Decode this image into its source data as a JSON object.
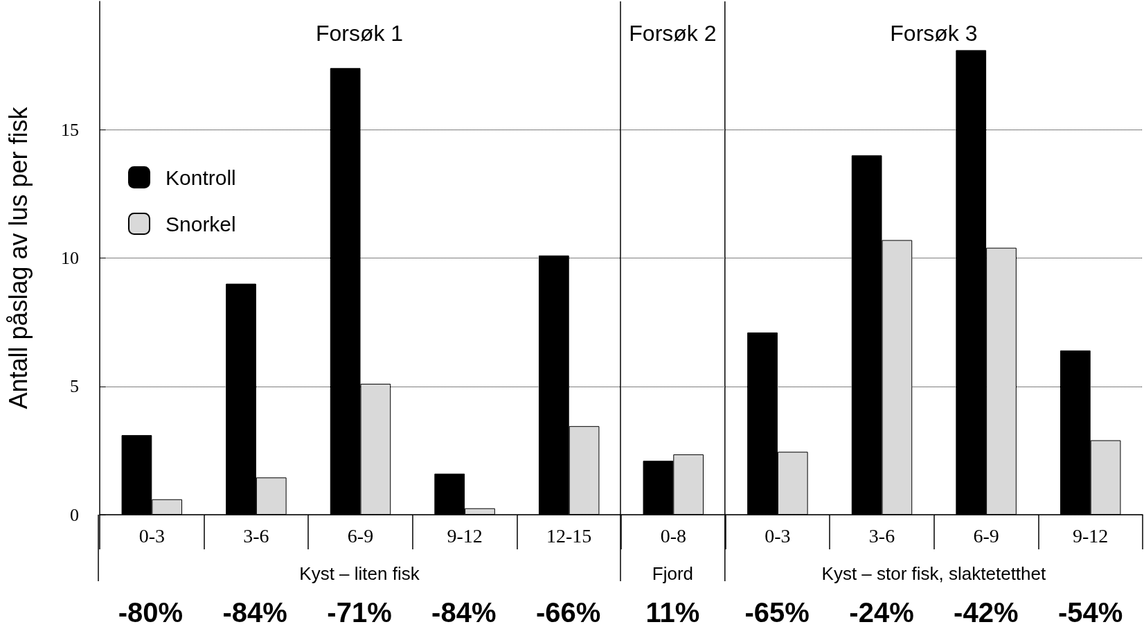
{
  "chart_data": {
    "type": "bar",
    "ylabel": "Antall påslag av lus per fisk",
    "categories": [
      "0-3",
      "3-6",
      "6-9",
      "9-12",
      "12-15",
      "0-8",
      "0-3",
      "3-6",
      "6-9",
      "9-12"
    ],
    "series": [
      {
        "name": "Kontroll",
        "color": "#000000",
        "values": [
          3.1,
          9.0,
          17.4,
          1.6,
          10.1,
          2.1,
          7.1,
          14.0,
          18.1,
          6.4
        ]
      },
      {
        "name": "Snorkel",
        "color": "#d9d9d9",
        "values": [
          0.6,
          1.45,
          5.1,
          0.25,
          3.45,
          2.35,
          2.45,
          10.7,
          10.4,
          2.9
        ]
      }
    ],
    "ylim": [
      0,
      20
    ],
    "yticks": [
      0,
      5,
      10,
      15
    ],
    "grid": "y",
    "legend": "top left",
    "annotations": [
      "Forsøk 1",
      "Forsøk 2",
      "Forsøk 3",
      "Kyst – liten fisk",
      "Fjord",
      "Kyst – stor fisk, slaktetetthet",
      "-80%",
      "-84%",
      "-71%",
      "-84%",
      "-66%",
      "11%",
      "-65%",
      "-24%",
      "-42%",
      "-54%"
    ]
  }
}
